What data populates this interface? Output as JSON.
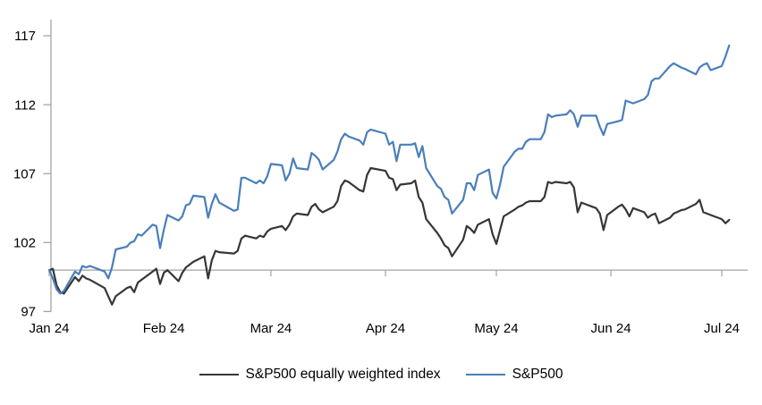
{
  "chart_data": {
    "type": "line",
    "title": "",
    "x_axis": {
      "tick_labels": [
        "Jan 24",
        "Feb 24",
        "Mar 24",
        "Apr 24",
        "May 24",
        "Jun 24",
        "Jul 24"
      ],
      "tick_days": [
        0,
        31,
        60,
        91,
        121,
        152,
        182
      ]
    },
    "y_axis": {
      "ticks": [
        117,
        112,
        107,
        102,
        97
      ],
      "min": 97,
      "max": 118
    },
    "baseline_value": 100,
    "axis_color": "#a3a3a3",
    "grid": "off",
    "legend_position": "bottom",
    "series": [
      {
        "name": "S&P500 equally weighted index",
        "color": "#363636",
        "points": [
          [
            0,
            100
          ],
          [
            1,
            100.1
          ],
          [
            2,
            98.9
          ],
          [
            3,
            98.4
          ],
          [
            4,
            98.3
          ],
          [
            7,
            99.5
          ],
          [
            8,
            99.2
          ],
          [
            9,
            99.6
          ],
          [
            10,
            99.4
          ],
          [
            11,
            99.3
          ],
          [
            15,
            98.7
          ],
          [
            16,
            98.1
          ],
          [
            17,
            97.5
          ],
          [
            18,
            98.1
          ],
          [
            21,
            98.7
          ],
          [
            22,
            98.8
          ],
          [
            23,
            98.4
          ],
          [
            24,
            99.1
          ],
          [
            25,
            99.3
          ],
          [
            28,
            99.9
          ],
          [
            29,
            100.1
          ],
          [
            30,
            99.0
          ],
          [
            31,
            99.8
          ],
          [
            32,
            100.0
          ],
          [
            35,
            99.2
          ],
          [
            36,
            99.8
          ],
          [
            37,
            100.2
          ],
          [
            38,
            100.4
          ],
          [
            39,
            100.6
          ],
          [
            42,
            101.0
          ],
          [
            43,
            99.4
          ],
          [
            44,
            100.7
          ],
          [
            45,
            101.4
          ],
          [
            46,
            101.3
          ],
          [
            50,
            101.2
          ],
          [
            51,
            101.4
          ],
          [
            52,
            102.3
          ],
          [
            53,
            102.5
          ],
          [
            56,
            102.3
          ],
          [
            57,
            102.5
          ],
          [
            58,
            102.4
          ],
          [
            59,
            102.8
          ],
          [
            60,
            103.0
          ],
          [
            63,
            103.2
          ],
          [
            64,
            102.9
          ],
          [
            65,
            103.3
          ],
          [
            66,
            103.9
          ],
          [
            67,
            104.1
          ],
          [
            70,
            104.0
          ],
          [
            71,
            104.6
          ],
          [
            72,
            104.8
          ],
          [
            73,
            104.4
          ],
          [
            74,
            104.2
          ],
          [
            77,
            104.6
          ],
          [
            78,
            105.0
          ],
          [
            79,
            106.1
          ],
          [
            80,
            106.5
          ],
          [
            81,
            106.4
          ],
          [
            84,
            105.8
          ],
          [
            85,
            105.7
          ],
          [
            86,
            106.9
          ],
          [
            87,
            107.4
          ],
          [
            91,
            107.2
          ],
          [
            92,
            106.7
          ],
          [
            93,
            106.6
          ],
          [
            94,
            105.8
          ],
          [
            95,
            106.2
          ],
          [
            98,
            106.3
          ],
          [
            99,
            106.5
          ],
          [
            100,
            105.3
          ],
          [
            101,
            104.9
          ],
          [
            102,
            103.7
          ],
          [
            105,
            102.7
          ],
          [
            106,
            102.3
          ],
          [
            107,
            101.8
          ],
          [
            108,
            101.6
          ],
          [
            109,
            101.0
          ],
          [
            112,
            102.2
          ],
          [
            113,
            103.2
          ],
          [
            114,
            103.0
          ],
          [
            115,
            102.7
          ],
          [
            116,
            103.3
          ],
          [
            119,
            103.7
          ],
          [
            120,
            102.6
          ],
          [
            121,
            101.9
          ],
          [
            122,
            102.9
          ],
          [
            123,
            103.9
          ],
          [
            126,
            104.4
          ],
          [
            127,
            104.6
          ],
          [
            128,
            104.7
          ],
          [
            129,
            104.9
          ],
          [
            130,
            105.0
          ],
          [
            133,
            105.0
          ],
          [
            134,
            105.3
          ],
          [
            135,
            106.4
          ],
          [
            136,
            106.3
          ],
          [
            137,
            106.4
          ],
          [
            140,
            106.3
          ],
          [
            141,
            106.4
          ],
          [
            142,
            106.0
          ],
          [
            143,
            104.2
          ],
          [
            144,
            104.9
          ],
          [
            148,
            104.5
          ],
          [
            149,
            104.1
          ],
          [
            150,
            102.9
          ],
          [
            151,
            104.0
          ],
          [
            154,
            104.6
          ],
          [
            155,
            104.75
          ],
          [
            156,
            104.4
          ],
          [
            157,
            103.9
          ],
          [
            158,
            104.5
          ],
          [
            161,
            104.2
          ],
          [
            162,
            103.8
          ],
          [
            163,
            104.0
          ],
          [
            164,
            104.1
          ],
          [
            165,
            103.4
          ],
          [
            168,
            103.8
          ],
          [
            169,
            104.1
          ],
          [
            171,
            104.35
          ],
          [
            172,
            104.4
          ],
          [
            175,
            104.8
          ],
          [
            176,
            105.1
          ],
          [
            177,
            104.2
          ],
          [
            178,
            104.1
          ],
          [
            179,
            104.0
          ],
          [
            182,
            103.7
          ],
          [
            183,
            103.4
          ],
          [
            184,
            103.65
          ]
        ]
      },
      {
        "name": "S&P500",
        "color": "#4A7EBB",
        "points": [
          [
            0,
            100
          ],
          [
            1,
            99.4
          ],
          [
            2,
            98.6
          ],
          [
            3,
            98.3
          ],
          [
            4,
            98.5
          ],
          [
            7,
            99.9
          ],
          [
            8,
            99.7
          ],
          [
            9,
            100.3
          ],
          [
            10,
            100.2
          ],
          [
            11,
            100.3
          ],
          [
            15,
            99.9
          ],
          [
            16,
            99.4
          ],
          [
            17,
            100.2
          ],
          [
            18,
            101.5
          ],
          [
            21,
            101.7
          ],
          [
            22,
            102.0
          ],
          [
            23,
            102.1
          ],
          [
            24,
            102.6
          ],
          [
            25,
            102.5
          ],
          [
            28,
            103.3
          ],
          [
            29,
            103.2
          ],
          [
            30,
            101.6
          ],
          [
            31,
            102.9
          ],
          [
            32,
            104.0
          ],
          [
            35,
            103.6
          ],
          [
            36,
            103.9
          ],
          [
            37,
            104.7
          ],
          [
            38,
            104.8
          ],
          [
            39,
            105.4
          ],
          [
            42,
            105.3
          ],
          [
            43,
            103.8
          ],
          [
            44,
            104.8
          ],
          [
            45,
            105.5
          ],
          [
            46,
            104.9
          ],
          [
            50,
            104.3
          ],
          [
            51,
            104.4
          ],
          [
            52,
            106.7
          ],
          [
            53,
            106.7
          ],
          [
            56,
            106.3
          ],
          [
            57,
            106.5
          ],
          [
            58,
            106.3
          ],
          [
            59,
            106.8
          ],
          [
            60,
            107.7
          ],
          [
            63,
            107.6
          ],
          [
            64,
            106.5
          ],
          [
            65,
            107.0
          ],
          [
            66,
            108.1
          ],
          [
            67,
            107.4
          ],
          [
            70,
            107.3
          ],
          [
            71,
            108.5
          ],
          [
            72,
            108.3
          ],
          [
            73,
            108.0
          ],
          [
            74,
            107.3
          ],
          [
            77,
            108.0
          ],
          [
            78,
            108.6
          ],
          [
            79,
            109.5
          ],
          [
            80,
            109.9
          ],
          [
            81,
            109.7
          ],
          [
            84,
            109.4
          ],
          [
            85,
            109.1
          ],
          [
            86,
            110.0
          ],
          [
            87,
            110.2
          ],
          [
            91,
            109.9
          ],
          [
            92,
            109.1
          ],
          [
            93,
            109.3
          ],
          [
            94,
            107.9
          ],
          [
            95,
            109.1
          ],
          [
            98,
            109.1
          ],
          [
            99,
            109.2
          ],
          [
            100,
            108.2
          ],
          [
            101,
            109.0
          ],
          [
            102,
            107.4
          ],
          [
            105,
            106.1
          ],
          [
            106,
            105.9
          ],
          [
            107,
            105.3
          ],
          [
            108,
            105.1
          ],
          [
            109,
            104.1
          ],
          [
            112,
            105.1
          ],
          [
            113,
            106.3
          ],
          [
            114,
            106.3
          ],
          [
            115,
            105.8
          ],
          [
            116,
            106.9
          ],
          [
            119,
            107.3
          ],
          [
            120,
            105.6
          ],
          [
            121,
            105.2
          ],
          [
            122,
            106.2
          ],
          [
            123,
            107.5
          ],
          [
            126,
            108.6
          ],
          [
            127,
            108.8
          ],
          [
            128,
            108.8
          ],
          [
            129,
            109.3
          ],
          [
            130,
            109.5
          ],
          [
            133,
            109.5
          ],
          [
            134,
            110.0
          ],
          [
            135,
            111.3
          ],
          [
            136,
            111.1
          ],
          [
            137,
            111.2
          ],
          [
            140,
            111.3
          ],
          [
            141,
            111.6
          ],
          [
            142,
            111.3
          ],
          [
            143,
            110.4
          ],
          [
            144,
            111.2
          ],
          [
            148,
            111.2
          ],
          [
            149,
            110.4
          ],
          [
            150,
            109.8
          ],
          [
            151,
            110.6
          ],
          [
            154,
            110.8
          ],
          [
            155,
            110.9
          ],
          [
            156,
            112.3
          ],
          [
            157,
            112.2
          ],
          [
            158,
            112.1
          ],
          [
            161,
            112.4
          ],
          [
            162,
            112.7
          ],
          [
            163,
            113.7
          ],
          [
            164,
            113.9
          ],
          [
            165,
            113.9
          ],
          [
            168,
            114.8
          ],
          [
            169,
            115.0
          ],
          [
            171,
            114.7
          ],
          [
            172,
            114.6
          ],
          [
            175,
            114.2
          ],
          [
            176,
            114.7
          ],
          [
            177,
            114.9
          ],
          [
            178,
            115.0
          ],
          [
            179,
            114.5
          ],
          [
            182,
            114.8
          ],
          [
            183,
            115.5
          ],
          [
            184,
            116.3
          ]
        ]
      }
    ]
  },
  "legend": {
    "equal_weight_label": "S&P500 equally weighted index",
    "sp500_label": "S&P500"
  }
}
